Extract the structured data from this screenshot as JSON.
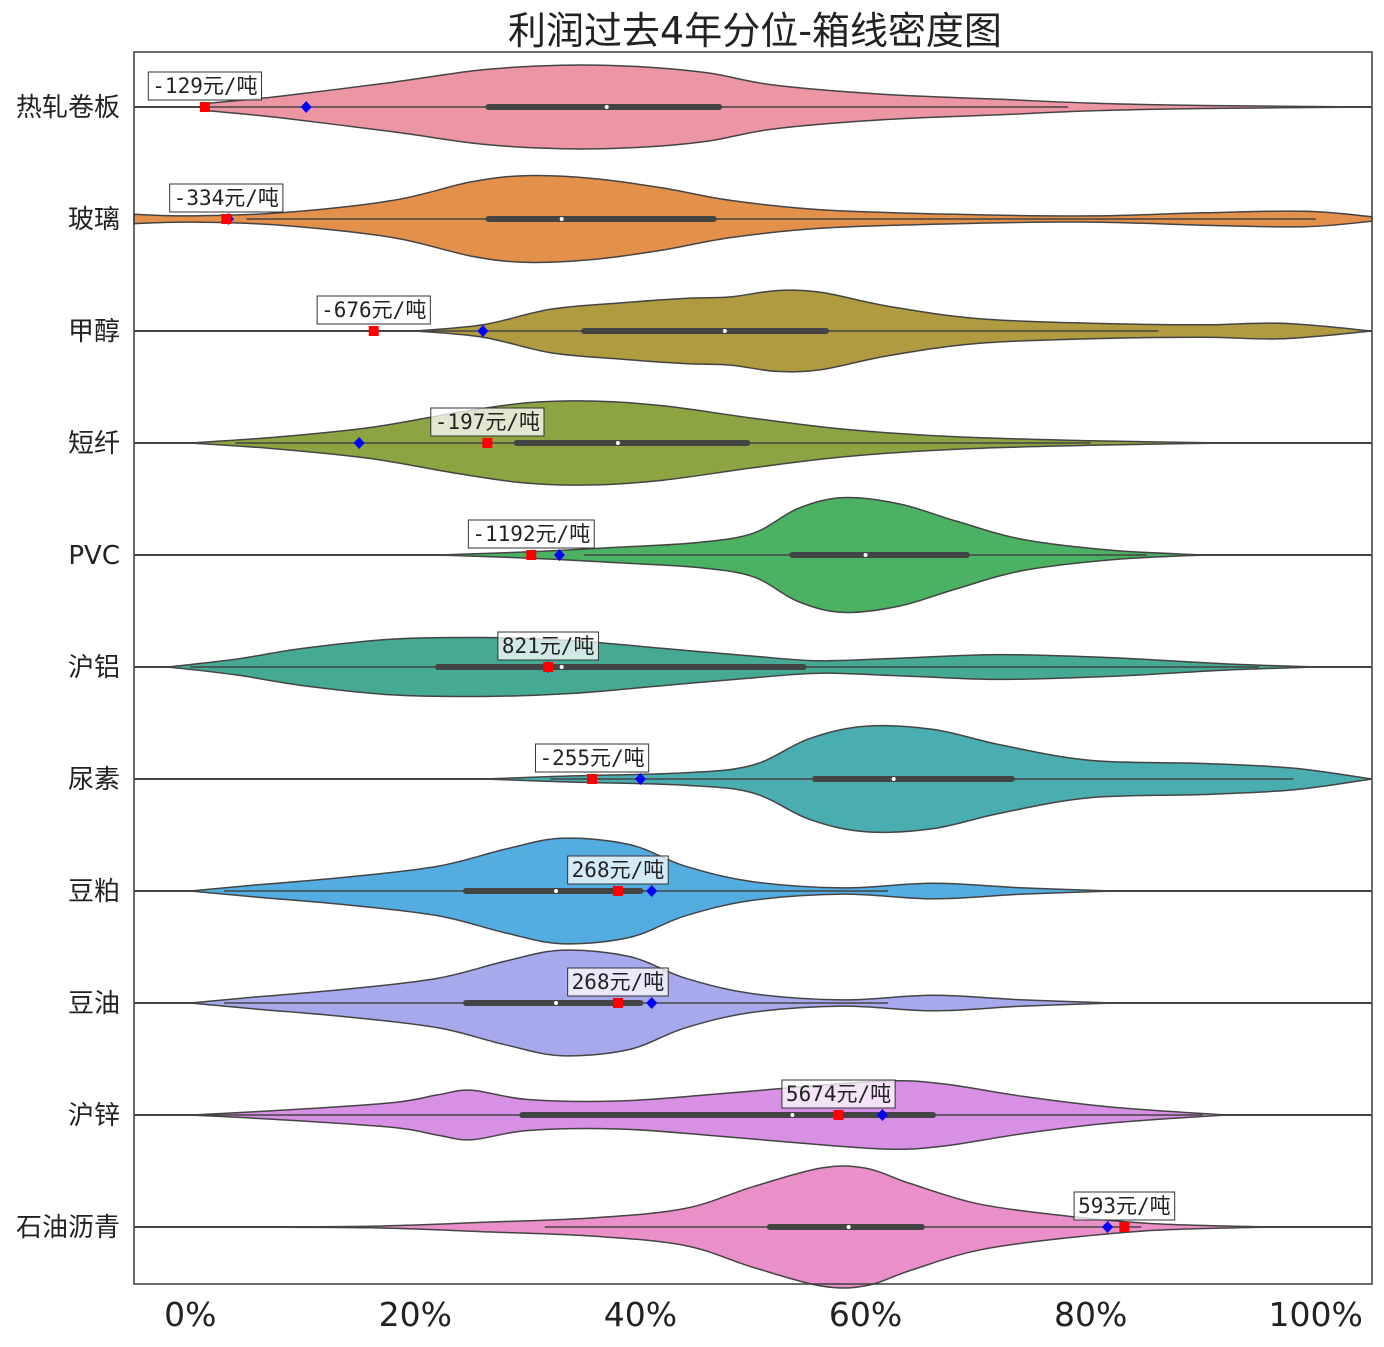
{
  "chart_data": {
    "type": "violin",
    "title": "利润过去4年分位-箱线密度图",
    "xlabel": "",
    "ylabel": "",
    "xlim": [
      -0.05,
      1.05
    ],
    "x_ticks": [
      0,
      0.2,
      0.4,
      0.6,
      0.8,
      1.0
    ],
    "x_tick_labels": [
      "0%",
      "20%",
      "40%",
      "60%",
      "80%",
      "100%"
    ],
    "grid": false,
    "legend": "none",
    "current_marker_color": "#ff0000",
    "reference_marker_color": "#0000ff",
    "series": [
      {
        "name": "热轧卷板",
        "color": "#ed96a3",
        "q1": 0.265,
        "median": 0.37,
        "q3": 0.47,
        "whisker_low": 0.0,
        "whisker_high": 0.78,
        "current": 0.013,
        "reference": 0.103,
        "label": "-129元/吨",
        "density": [
          [
            0.01,
            0.02
          ],
          [
            0.08,
            0.07
          ],
          [
            0.18,
            0.16
          ],
          [
            0.26,
            0.24
          ],
          [
            0.33,
            0.27
          ],
          [
            0.4,
            0.26
          ],
          [
            0.46,
            0.22
          ],
          [
            0.52,
            0.14
          ],
          [
            0.62,
            0.08
          ],
          [
            0.72,
            0.05
          ],
          [
            0.8,
            0.025
          ],
          [
            0.9,
            0.01
          ],
          [
            1.05,
            0.0
          ]
        ]
      },
      {
        "name": "玻璃",
        "color": "#e3904b",
        "q1": 0.265,
        "median": 0.33,
        "q3": 0.465,
        "whisker_low": 0.05,
        "whisker_high": 1.0,
        "current": 0.032,
        "reference": 0.034,
        "label": "-334元/吨",
        "density": [
          [
            -0.05,
            0.03
          ],
          [
            0.0,
            0.02
          ],
          [
            0.08,
            0.04
          ],
          [
            0.18,
            0.12
          ],
          [
            0.25,
            0.24
          ],
          [
            0.3,
            0.28
          ],
          [
            0.36,
            0.26
          ],
          [
            0.42,
            0.2
          ],
          [
            0.48,
            0.12
          ],
          [
            0.56,
            0.06
          ],
          [
            0.68,
            0.03
          ],
          [
            0.8,
            0.02
          ],
          [
            0.9,
            0.04
          ],
          [
            0.99,
            0.05
          ],
          [
            1.05,
            0.015
          ]
        ]
      },
      {
        "name": "甲醇",
        "color": "#b09b41",
        "q1": 0.35,
        "median": 0.475,
        "q3": 0.565,
        "whisker_low": 0.2,
        "whisker_high": 0.86,
        "current": 0.163,
        "reference": 0.26,
        "label": "-676元/吨",
        "density": [
          [
            0.2,
            0.0
          ],
          [
            0.26,
            0.04
          ],
          [
            0.32,
            0.14
          ],
          [
            0.38,
            0.18
          ],
          [
            0.44,
            0.21
          ],
          [
            0.48,
            0.22
          ],
          [
            0.52,
            0.26
          ],
          [
            0.56,
            0.25
          ],
          [
            0.62,
            0.16
          ],
          [
            0.7,
            0.08
          ],
          [
            0.8,
            0.05
          ],
          [
            0.9,
            0.04
          ],
          [
            0.97,
            0.05
          ],
          [
            1.05,
            0.0
          ]
        ]
      },
      {
        "name": "短纤",
        "color": "#8ca542",
        "q1": 0.29,
        "median": 0.38,
        "q3": 0.495,
        "whisker_low": 0.04,
        "whisker_high": 0.8,
        "current": 0.264,
        "reference": 0.15,
        "label": "-197元/吨",
        "density": [
          [
            0.0,
            0.0
          ],
          [
            0.08,
            0.04
          ],
          [
            0.16,
            0.1
          ],
          [
            0.24,
            0.2
          ],
          [
            0.3,
            0.26
          ],
          [
            0.36,
            0.27
          ],
          [
            0.42,
            0.24
          ],
          [
            0.5,
            0.16
          ],
          [
            0.58,
            0.09
          ],
          [
            0.68,
            0.04
          ],
          [
            0.8,
            0.015
          ],
          [
            0.92,
            0.0
          ]
        ]
      },
      {
        "name": "PVC",
        "color": "#4ab262",
        "q1": 0.535,
        "median": 0.6,
        "q3": 0.69,
        "whisker_low": 0.35,
        "whisker_high": 0.85,
        "current": 0.303,
        "reference": 0.328,
        "label": "-1192元/吨",
        "density": [
          [
            0.22,
            0.0
          ],
          [
            0.3,
            0.02
          ],
          [
            0.38,
            0.05
          ],
          [
            0.45,
            0.08
          ],
          [
            0.5,
            0.14
          ],
          [
            0.54,
            0.3
          ],
          [
            0.58,
            0.37
          ],
          [
            0.63,
            0.33
          ],
          [
            0.68,
            0.22
          ],
          [
            0.74,
            0.1
          ],
          [
            0.82,
            0.03
          ],
          [
            0.9,
            0.0
          ]
        ]
      },
      {
        "name": "沪铝",
        "color": "#46a993",
        "q1": 0.22,
        "median": 0.33,
        "q3": 0.545,
        "whisker_low": 0.0,
        "whisker_high": 0.95,
        "current": 0.318,
        "reference": 0.318,
        "label": "821元/吨",
        "density": [
          [
            -0.02,
            0.0
          ],
          [
            0.04,
            0.05
          ],
          [
            0.1,
            0.12
          ],
          [
            0.18,
            0.18
          ],
          [
            0.26,
            0.19
          ],
          [
            0.34,
            0.17
          ],
          [
            0.42,
            0.12
          ],
          [
            0.5,
            0.07
          ],
          [
            0.56,
            0.04
          ],
          [
            0.64,
            0.06
          ],
          [
            0.72,
            0.08
          ],
          [
            0.82,
            0.06
          ],
          [
            0.92,
            0.02
          ],
          [
            1.0,
            0.0
          ]
        ]
      },
      {
        "name": "尿素",
        "color": "#4aaeb0",
        "q1": 0.555,
        "median": 0.625,
        "q3": 0.73,
        "whisker_low": 0.32,
        "whisker_high": 0.98,
        "current": 0.357,
        "reference": 0.4,
        "label": "-255元/吨",
        "density": [
          [
            0.26,
            0.0
          ],
          [
            0.34,
            0.02
          ],
          [
            0.44,
            0.04
          ],
          [
            0.5,
            0.09
          ],
          [
            0.55,
            0.26
          ],
          [
            0.6,
            0.34
          ],
          [
            0.66,
            0.32
          ],
          [
            0.72,
            0.22
          ],
          [
            0.8,
            0.12
          ],
          [
            0.9,
            0.1
          ],
          [
            0.98,
            0.07
          ],
          [
            1.05,
            0.0
          ]
        ]
      },
      {
        "name": "豆粕",
        "color": "#53ade0",
        "q1": 0.245,
        "median": 0.325,
        "q3": 0.4,
        "whisker_low": 0.03,
        "whisker_high": 0.62,
        "current": 0.38,
        "reference": 0.41,
        "label": "268元/吨",
        "density": [
          [
            0.0,
            0.0
          ],
          [
            0.06,
            0.04
          ],
          [
            0.14,
            0.09
          ],
          [
            0.22,
            0.16
          ],
          [
            0.28,
            0.27
          ],
          [
            0.33,
            0.34
          ],
          [
            0.39,
            0.3
          ],
          [
            0.44,
            0.16
          ],
          [
            0.5,
            0.06
          ],
          [
            0.58,
            0.02
          ],
          [
            0.66,
            0.05
          ],
          [
            0.74,
            0.02
          ],
          [
            0.82,
            0.0
          ]
        ]
      },
      {
        "name": "豆油",
        "color": "#a6a9eb",
        "q1": 0.245,
        "median": 0.325,
        "q3": 0.4,
        "whisker_low": 0.03,
        "whisker_high": 0.62,
        "current": 0.38,
        "reference": 0.41,
        "label": "268元/吨",
        "density": [
          [
            0.0,
            0.0
          ],
          [
            0.06,
            0.04
          ],
          [
            0.14,
            0.09
          ],
          [
            0.22,
            0.16
          ],
          [
            0.28,
            0.27
          ],
          [
            0.33,
            0.34
          ],
          [
            0.39,
            0.3
          ],
          [
            0.44,
            0.16
          ],
          [
            0.5,
            0.06
          ],
          [
            0.58,
            0.02
          ],
          [
            0.66,
            0.05
          ],
          [
            0.74,
            0.02
          ],
          [
            0.82,
            0.0
          ]
        ]
      },
      {
        "name": "沪锌",
        "color": "#d890e4",
        "q1": 0.295,
        "median": 0.535,
        "q3": 0.66,
        "whisker_low": 0.0,
        "whisker_high": 0.9,
        "current": 0.576,
        "reference": 0.615,
        "label": "5674元/吨",
        "density": [
          [
            0.0,
            0.0
          ],
          [
            0.08,
            0.03
          ],
          [
            0.18,
            0.08
          ],
          [
            0.22,
            0.13
          ],
          [
            0.25,
            0.16
          ],
          [
            0.3,
            0.1
          ],
          [
            0.38,
            0.09
          ],
          [
            0.46,
            0.13
          ],
          [
            0.54,
            0.18
          ],
          [
            0.62,
            0.22
          ],
          [
            0.67,
            0.2
          ],
          [
            0.74,
            0.12
          ],
          [
            0.82,
            0.05
          ],
          [
            0.92,
            0.0
          ]
        ]
      },
      {
        "name": "石油沥青",
        "color": "#ea8fc8",
        "q1": 0.515,
        "median": 0.585,
        "q3": 0.65,
        "whisker_low": 0.315,
        "whisker_high": 0.845,
        "current": 0.83,
        "reference": 0.815,
        "label": "593元/吨",
        "density": [
          [
            0.0,
            0.0
          ],
          [
            0.16,
            0.005
          ],
          [
            0.26,
            0.03
          ],
          [
            0.36,
            0.06
          ],
          [
            0.44,
            0.12
          ],
          [
            0.5,
            0.26
          ],
          [
            0.56,
            0.38
          ],
          [
            0.6,
            0.38
          ],
          [
            0.64,
            0.28
          ],
          [
            0.7,
            0.15
          ],
          [
            0.78,
            0.07
          ],
          [
            0.86,
            0.02
          ],
          [
            0.96,
            0.0
          ]
        ]
      }
    ]
  }
}
